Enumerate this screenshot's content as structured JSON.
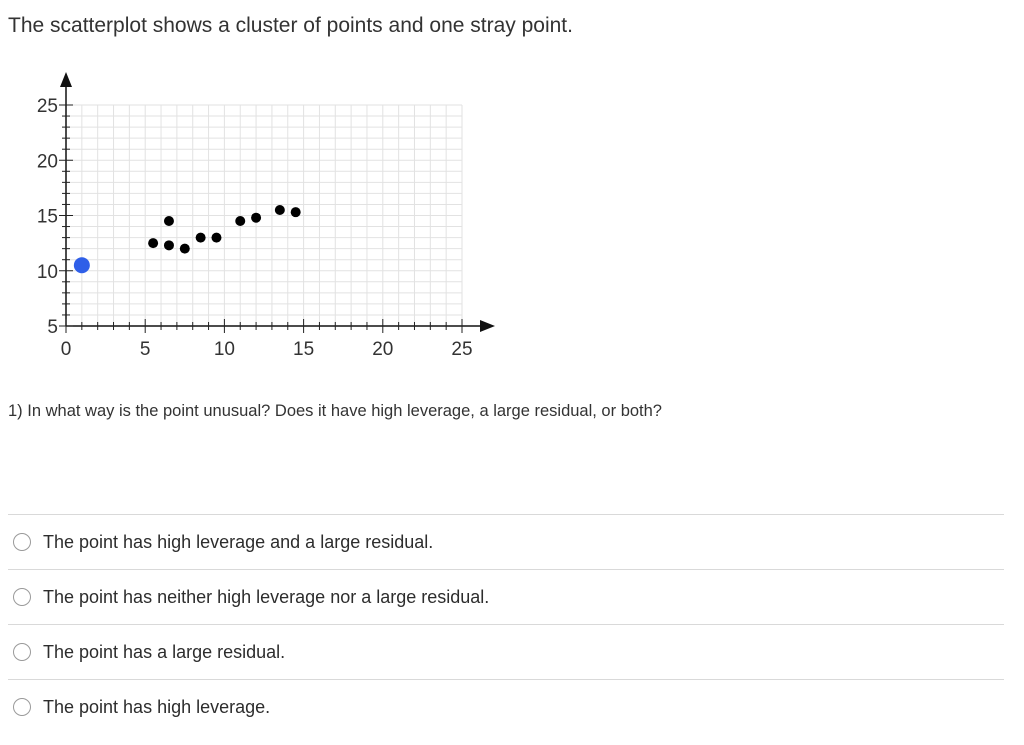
{
  "intro": "The scatterplot shows a cluster of points and one stray point.",
  "chart_data": {
    "type": "scatter",
    "xlim": [
      0,
      25
    ],
    "ylim": [
      5,
      25
    ],
    "x_ticks": [
      0,
      5,
      10,
      15,
      20,
      25
    ],
    "y_ticks": [
      5,
      10,
      15,
      20,
      25
    ],
    "grid": true,
    "series": [
      {
        "color": "#000000",
        "points": [
          {
            "x": 5.5,
            "y": 12.5
          },
          {
            "x": 6.5,
            "y": 14.5
          },
          {
            "x": 6.5,
            "y": 12.3
          },
          {
            "x": 7.5,
            "y": 12.0
          },
          {
            "x": 8.5,
            "y": 13.0
          },
          {
            "x": 9.5,
            "y": 13.0
          },
          {
            "x": 11.0,
            "y": 14.5
          },
          {
            "x": 12.0,
            "y": 14.8
          },
          {
            "x": 13.5,
            "y": 15.5
          },
          {
            "x": 14.5,
            "y": 15.3
          }
        ]
      },
      {
        "color": "#2f5fe8",
        "points": [
          {
            "x": 1.0,
            "y": 10.5
          }
        ]
      }
    ]
  },
  "question": "1) In what way is the point unusual? Does it have high leverage, a large residual, or both?",
  "options": [
    {
      "label": "The point has high leverage and a large residual."
    },
    {
      "label": "The point has neither high leverage nor a large residual."
    },
    {
      "label": "The point has a large residual."
    },
    {
      "label": "The point has high leverage."
    }
  ]
}
